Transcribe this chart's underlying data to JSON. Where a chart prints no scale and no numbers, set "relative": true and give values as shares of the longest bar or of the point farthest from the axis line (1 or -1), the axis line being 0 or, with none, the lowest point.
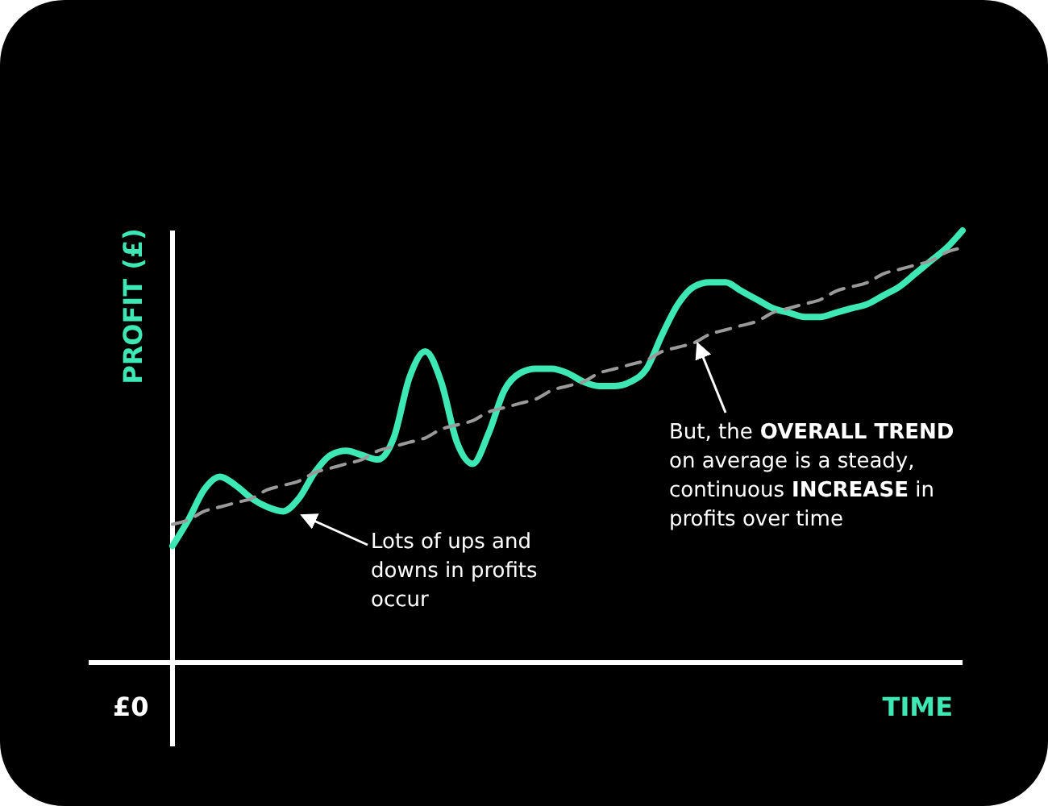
{
  "chart_data": {
    "type": "line",
    "relative": true,
    "xlabel": "TIME",
    "ylabel": "PROFIT (£)",
    "categories": [
      null,
      null,
      null,
      null,
      null,
      null,
      null,
      null,
      null,
      null,
      null,
      null,
      null,
      null,
      null,
      null,
      null,
      null,
      null,
      null,
      null,
      null,
      null,
      null,
      null,
      null,
      null,
      null,
      null,
      null,
      null,
      null,
      null,
      null,
      null,
      null,
      null,
      null,
      null,
      null,
      null,
      null,
      null,
      null,
      null,
      null,
      null,
      null,
      null,
      null,
      null
    ],
    "series": [
      {
        "color": "#3de8b4",
        "line_style": "solid",
        "values": [
          0.27,
          0.33,
          0.4,
          0.43,
          0.41,
          0.38,
          0.36,
          0.35,
          0.38,
          0.44,
          0.48,
          0.49,
          0.48,
          0.47,
          0.52,
          0.66,
          0.72,
          0.65,
          0.51,
          0.46,
          0.53,
          0.63,
          0.67,
          0.68,
          0.68,
          0.67,
          0.65,
          0.64,
          0.64,
          0.65,
          0.68,
          0.76,
          0.83,
          0.87,
          0.88,
          0.88,
          0.86,
          0.84,
          0.82,
          0.81,
          0.8,
          0.8,
          0.81,
          0.82,
          0.83,
          0.85,
          0.87,
          0.9,
          0.93,
          0.96,
          1
        ]
      },
      {
        "color": "#9a9a9a",
        "line_style": "dashed",
        "values": [
          0.32,
          0.33,
          0.35,
          0.36,
          0.37,
          0.38,
          0.4,
          0.41,
          0.42,
          0.44,
          0.45,
          0.46,
          0.47,
          0.49,
          0.5,
          0.51,
          0.52,
          0.54,
          0.55,
          0.56,
          0.58,
          0.59,
          0.6,
          0.61,
          0.63,
          0.64,
          0.65,
          0.67,
          0.68,
          0.69,
          0.7,
          0.72,
          0.73,
          0.74,
          0.76,
          0.77,
          0.78,
          0.79,
          0.81,
          0.82,
          0.83,
          0.84,
          0.86,
          0.87,
          0.88,
          0.9,
          0.91,
          0.92,
          0.93,
          0.95,
          0.96
        ]
      }
    ],
    "annotations": [
      "£0",
      "Lots of ups and downs in profits occur",
      "But, the OVERALL TREND on average is a steady, continuous INCREASE in profits over time"
    ]
  }
}
